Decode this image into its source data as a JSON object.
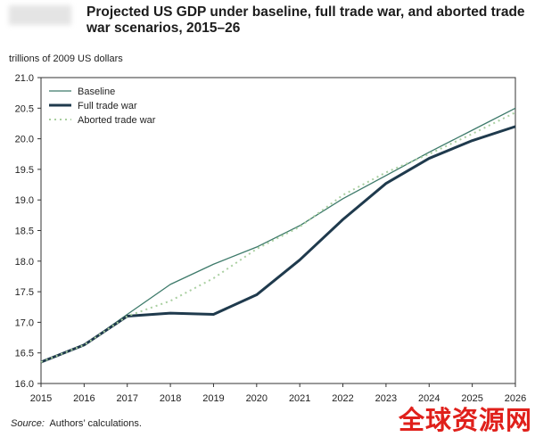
{
  "chart_data": {
    "type": "line",
    "title": "Projected US GDP under baseline, full trade war, and aborted trade war scenarios, 2015–26",
    "ylabel": "trillions of 2009 US dollars",
    "xlabel": "",
    "x": [
      2015,
      2016,
      2017,
      2018,
      2019,
      2020,
      2021,
      2022,
      2023,
      2024,
      2025,
      2026
    ],
    "xlim": [
      2015,
      2026
    ],
    "ylim": [
      16.0,
      21.0
    ],
    "yticks": [
      "16.0",
      "16.5",
      "17.0",
      "17.5",
      "18.0",
      "18.5",
      "19.0",
      "19.5",
      "20.0",
      "20.5",
      "21.0"
    ],
    "grid": false,
    "legend_placement": "top-left",
    "series": [
      {
        "name": "Baseline",
        "color": "#3d7a6a",
        "style": "solid-thin",
        "values": [
          16.35,
          16.63,
          17.13,
          17.62,
          17.95,
          18.23,
          18.58,
          19.02,
          19.4,
          19.78,
          20.14,
          20.5
        ]
      },
      {
        "name": "Full trade war",
        "color": "#1f3a4d",
        "style": "solid-thick",
        "values": [
          16.35,
          16.63,
          17.1,
          17.15,
          17.13,
          17.45,
          18.02,
          18.68,
          19.27,
          19.68,
          19.97,
          20.2
        ]
      },
      {
        "name": "Aborted trade war",
        "color": "#a9cfa0",
        "style": "dotted",
        "values": [
          16.35,
          16.63,
          17.1,
          17.35,
          17.72,
          18.2,
          18.56,
          19.08,
          19.45,
          19.75,
          20.08,
          20.43
        ]
      }
    ]
  },
  "source_label": "Source:",
  "source_text": "Authors’ calculations.",
  "watermark": "全球资源网"
}
